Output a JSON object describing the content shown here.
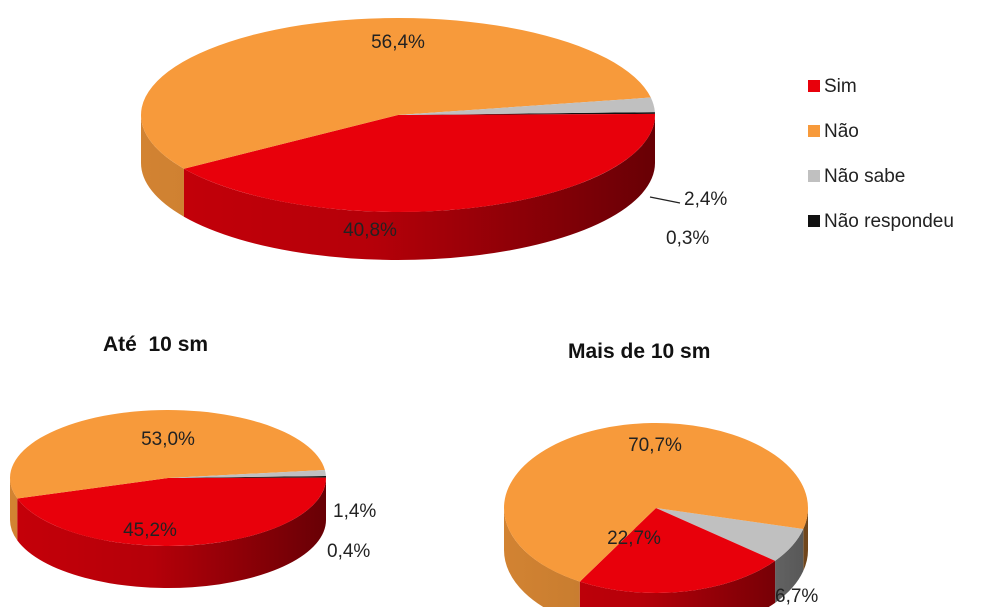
{
  "colors": {
    "Sim": "#e8000b",
    "Não": "#f79a3b",
    "Não sabe": "#c0c0c0",
    "Não respondeu": "#111111"
  },
  "legend": {
    "items": [
      "Sim",
      "Não",
      "Não sabe",
      "Não respondeu"
    ]
  },
  "chart_data": [
    {
      "type": "pie",
      "title": "",
      "categories": [
        "Sim",
        "Não",
        "Não sabe",
        "Não respondeu"
      ],
      "values": [
        40.8,
        56.4,
        2.4,
        0.3
      ],
      "labels": [
        "40,8%",
        "56,4%",
        "2,4%",
        "0,3%"
      ]
    },
    {
      "type": "pie",
      "title": "Até  10 sm",
      "categories": [
        "Sim",
        "Não",
        "Não sabe",
        "Não respondeu"
      ],
      "values": [
        45.2,
        53.0,
        1.4,
        0.4
      ],
      "labels": [
        "45,2%",
        "53,0%",
        "1,4%",
        "0,4%"
      ]
    },
    {
      "type": "pie",
      "title": "Mais de 10 sm",
      "categories": [
        "Sim",
        "Não",
        "Não sabe",
        "Não respondeu"
      ],
      "values": [
        22.7,
        70.7,
        6.7,
        0
      ],
      "labels": [
        "22,7%",
        "70,7%",
        "6,7%",
        ""
      ]
    }
  ]
}
